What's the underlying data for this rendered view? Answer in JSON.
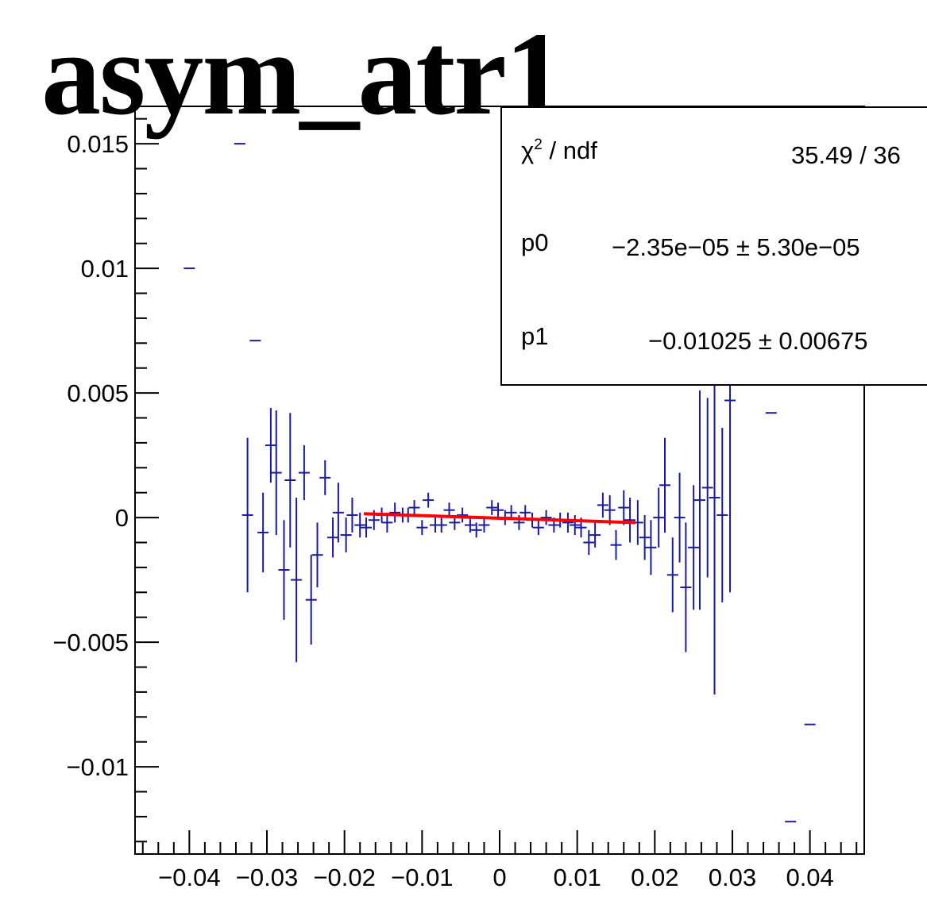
{
  "chart_data": {
    "type": "scatter",
    "title": "asym_atr1",
    "xlabel": "",
    "ylabel": "",
    "xlim": [
      -0.047,
      0.047
    ],
    "ylim": [
      -0.0135,
      0.0165
    ],
    "x_ticks": [
      "-0.04",
      "-0.03",
      "-0.02",
      "-0.01",
      "0",
      "0.01",
      "0.02",
      "0.03",
      "0.04"
    ],
    "x_tick_values": [
      -0.04,
      -0.03,
      -0.02,
      -0.01,
      0,
      0.01,
      0.02,
      0.03,
      0.04
    ],
    "y_ticks": [
      "0.015",
      "0.01",
      "0.005",
      "0",
      "-0.005",
      "-0.01"
    ],
    "y_tick_values": [
      0.015,
      0.01,
      0.005,
      0,
      -0.005,
      -0.01
    ],
    "grid": false,
    "colors": {
      "data": "#1a1aa0",
      "fit": "#ff0000",
      "axis": "#000000"
    },
    "series": [
      {
        "style": "points-with-error-bars",
        "points": [
          {
            "x": -0.04,
            "y": 0.01,
            "e": 0
          },
          {
            "x": -0.0335,
            "y": 0.015,
            "e": 0
          },
          {
            "x": -0.0315,
            "y": 0.0071,
            "e": 0
          },
          {
            "x": -0.0325,
            "y": 0.0001,
            "e": 0.0031
          },
          {
            "x": -0.0305,
            "y": -0.0006,
            "e": 0.0016
          },
          {
            "x": -0.0295,
            "y": 0.0029,
            "e": 0.0015
          },
          {
            "x": -0.0288,
            "y": 0.0018,
            "e": 0.0025
          },
          {
            "x": -0.0278,
            "y": -0.0021,
            "e": 0.002
          },
          {
            "x": -0.027,
            "y": 0.0015,
            "e": 0.0027
          },
          {
            "x": -0.0262,
            "y": -0.0025,
            "e": 0.0033
          },
          {
            "x": -0.0252,
            "y": 0.0018,
            "e": 0.0011
          },
          {
            "x": -0.0243,
            "y": -0.0033,
            "e": 0.0018
          },
          {
            "x": -0.0235,
            "y": -0.0015,
            "e": 0.0013
          },
          {
            "x": -0.0225,
            "y": 0.0016,
            "e": 0.0007
          },
          {
            "x": -0.0215,
            "y": -0.0008,
            "e": 0.0008
          },
          {
            "x": -0.0208,
            "y": 0.0002,
            "e": 0.0012
          },
          {
            "x": -0.0198,
            "y": -0.0007,
            "e": 0.0007
          },
          {
            "x": -0.019,
            "y": 0.0001,
            "e": 0.0007
          },
          {
            "x": -0.018,
            "y": -0.0003,
            "e": 0.0005
          },
          {
            "x": -0.0172,
            "y": -0.0004,
            "e": 0.0004
          },
          {
            "x": -0.0162,
            "y": -0.0001,
            "e": 0.0004
          },
          {
            "x": -0.0152,
            "y": 0.0001,
            "e": 0.0003
          },
          {
            "x": -0.0145,
            "y": -0.0002,
            "e": 0.0004
          },
          {
            "x": -0.0135,
            "y": 0.0002,
            "e": 0.0004
          },
          {
            "x": -0.0125,
            "y": 0.0001,
            "e": 0.0003
          },
          {
            "x": -0.0118,
            "y": 0.0001,
            "e": 0.0003
          },
          {
            "x": -0.011,
            "y": 0.0004,
            "e": 0.0003
          },
          {
            "x": -0.01,
            "y": -0.0004,
            "e": 0.0003
          },
          {
            "x": -0.0092,
            "y": 0.0007,
            "e": 0.0003
          },
          {
            "x": -0.0083,
            "y": -0.0003,
            "e": 0.0003
          },
          {
            "x": -0.0075,
            "y": -0.0003,
            "e": 0.0003
          },
          {
            "x": -0.0065,
            "y": 0.0003,
            "e": 0.0003
          },
          {
            "x": -0.0058,
            "y": -0.0002,
            "e": 0.0003
          },
          {
            "x": -0.0048,
            "y": 0.0001,
            "e": 0.0003
          },
          {
            "x": -0.0038,
            "y": -0.0003,
            "e": 0.0003
          },
          {
            "x": -0.003,
            "y": -0.0005,
            "e": 0.0003
          },
          {
            "x": -0.002,
            "y": -0.0003,
            "e": 0.0003
          },
          {
            "x": -0.001,
            "y": 0.0004,
            "e": 0.0003
          },
          {
            "x": -0.0002,
            "y": 0.0003,
            "e": 0.0003
          },
          {
            "x": 0.0007,
            "y": 0.0,
            "e": 0.0003
          },
          {
            "x": 0.0015,
            "y": 0.0002,
            "e": 0.0003
          },
          {
            "x": 0.0025,
            "y": -0.0002,
            "e": 0.0003
          },
          {
            "x": 0.0033,
            "y": 0.0002,
            "e": 0.0003
          },
          {
            "x": 0.0042,
            "y": -0.0001,
            "e": 0.0003
          },
          {
            "x": 0.005,
            "y": -0.0004,
            "e": 0.0003
          },
          {
            "x": 0.006,
            "y": 0.0,
            "e": 0.0003
          },
          {
            "x": 0.007,
            "y": -0.0003,
            "e": 0.0003
          },
          {
            "x": 0.0078,
            "y": -0.0001,
            "e": 0.0003
          },
          {
            "x": 0.0088,
            "y": -0.0002,
            "e": 0.0004
          },
          {
            "x": 0.0097,
            "y": -0.0003,
            "e": 0.0004
          },
          {
            "x": 0.0105,
            "y": -0.0004,
            "e": 0.0004
          },
          {
            "x": 0.0115,
            "y": -0.001,
            "e": 0.0005
          },
          {
            "x": 0.0123,
            "y": -0.0007,
            "e": 0.0005
          },
          {
            "x": 0.0133,
            "y": 0.0005,
            "e": 0.0005
          },
          {
            "x": 0.0142,
            "y": 0.0003,
            "e": 0.0006
          },
          {
            "x": 0.015,
            "y": -0.0011,
            "e": 0.0006
          },
          {
            "x": 0.016,
            "y": 0.0004,
            "e": 0.0007
          },
          {
            "x": 0.0168,
            "y": -0.0001,
            "e": 0.0009
          },
          {
            "x": 0.0178,
            "y": -0.0002,
            "e": 0.0009
          },
          {
            "x": 0.0187,
            "y": -0.0008,
            "e": 0.0009
          },
          {
            "x": 0.0195,
            "y": -0.0012,
            "e": 0.0011
          },
          {
            "x": 0.0205,
            "y": 0.0,
            "e": 0.0012
          },
          {
            "x": 0.0213,
            "y": 0.0013,
            "e": 0.0019
          },
          {
            "x": 0.0223,
            "y": -0.0023,
            "e": 0.0015
          },
          {
            "x": 0.0232,
            "y": 0.0,
            "e": 0.0018
          },
          {
            "x": 0.024,
            "y": -0.0028,
            "e": 0.0026
          },
          {
            "x": 0.025,
            "y": -0.0012,
            "e": 0.0025
          },
          {
            "x": 0.0258,
            "y": 0.0007,
            "e": 0.0044
          },
          {
            "x": 0.0268,
            "y": 0.0012,
            "e": 0.0036
          },
          {
            "x": 0.0277,
            "y": 0.0008,
            "e": 0.0079
          },
          {
            "x": 0.0287,
            "y": 0.0001,
            "e": 0.0035
          },
          {
            "x": 0.0297,
            "y": 0.0047,
            "e": 0.0077
          },
          {
            "x": 0.035,
            "y": 0.0042,
            "e": 0
          },
          {
            "x": 0.04,
            "y": -0.0083,
            "e": 0
          },
          {
            "x": 0.0375,
            "y": -0.0122,
            "e": 0
          }
        ]
      },
      {
        "style": "fit-line",
        "x": [
          -0.0175,
          0.0175
        ],
        "y": [
          0.000156,
          -0.000203
        ]
      }
    ]
  },
  "stats_box": {
    "chi2_label": "/ ndf",
    "chi2_value": "35.49 / 36",
    "p0_label": "p0",
    "p0_value": "−2.35e−05 ± 5.30e−05",
    "p1_label": "p1",
    "p1_value": "−0.01025 ± 0.00675"
  }
}
